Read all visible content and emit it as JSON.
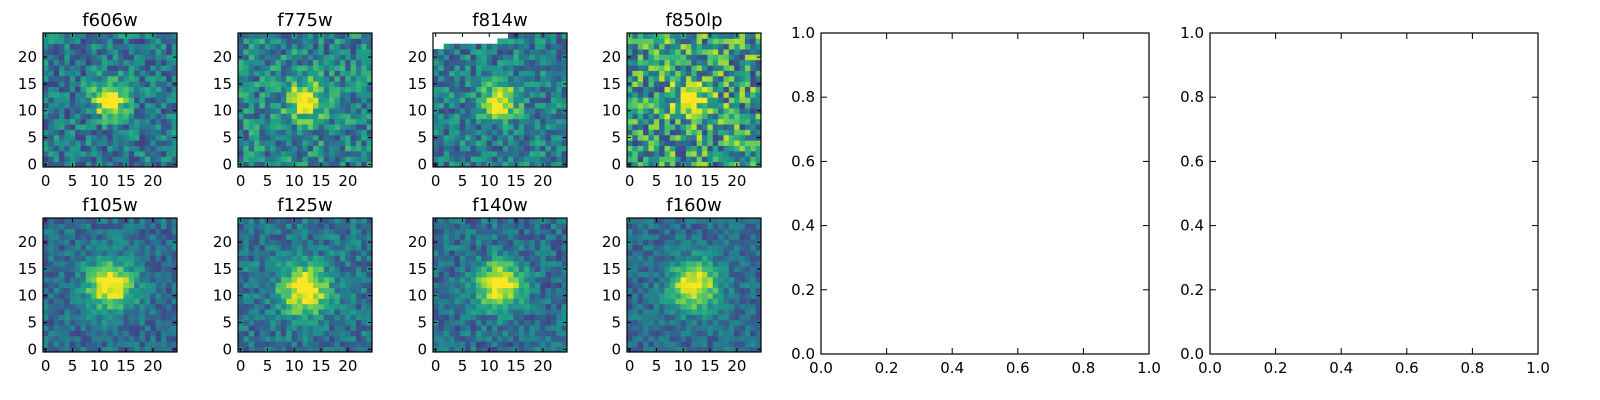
{
  "figure": {
    "background": "#ffffff"
  },
  "chart_data": [
    {
      "type": "heatmap",
      "title": "f606w",
      "xlabel": "",
      "ylabel": "",
      "x_ticks": [
        "0",
        "5",
        "10",
        "15",
        "20"
      ],
      "y_ticks": [
        "0",
        "5",
        "10",
        "15",
        "20"
      ],
      "xlim": [
        0,
        25
      ],
      "ylim": [
        0,
        25
      ],
      "grid_size": [
        25,
        25
      ],
      "colormap": "viridis",
      "peak": {
        "x": 12,
        "y": 12,
        "amplitude": 0.75,
        "sigma": 2.2
      },
      "background_level": 0.4,
      "noise": 0.22,
      "seed": 11,
      "masked_region": null
    },
    {
      "type": "heatmap",
      "title": "f775w",
      "xlabel": "",
      "ylabel": "",
      "x_ticks": [
        "0",
        "5",
        "10",
        "15",
        "20"
      ],
      "y_ticks": [
        "0",
        "5",
        "10",
        "15",
        "20"
      ],
      "xlim": [
        0,
        25
      ],
      "ylim": [
        0,
        25
      ],
      "grid_size": [
        25,
        25
      ],
      "colormap": "viridis",
      "peak": {
        "x": 12,
        "y": 12,
        "amplitude": 0.6,
        "sigma": 2.4
      },
      "background_level": 0.45,
      "noise": 0.24,
      "seed": 23,
      "masked_region": null
    },
    {
      "type": "heatmap",
      "title": "f814w",
      "xlabel": "",
      "ylabel": "",
      "x_ticks": [
        "0",
        "5",
        "10",
        "15",
        "20"
      ],
      "y_ticks": [
        "0",
        "5",
        "10",
        "15",
        "20"
      ],
      "xlim": [
        0,
        25
      ],
      "ylim": [
        0,
        25
      ],
      "grid_size": [
        25,
        25
      ],
      "colormap": "viridis",
      "peak": {
        "x": 12,
        "y": 12,
        "amplitude": 0.6,
        "sigma": 2.3
      },
      "background_level": 0.42,
      "noise": 0.22,
      "seed": 37,
      "masked_region": "top-left"
    },
    {
      "type": "heatmap",
      "title": "f850lp",
      "xlabel": "",
      "ylabel": "",
      "x_ticks": [
        "0",
        "5",
        "10",
        "15",
        "20"
      ],
      "y_ticks": [
        "0",
        "5",
        "10",
        "15",
        "20"
      ],
      "xlim": [
        0,
        25
      ],
      "ylim": [
        0,
        25
      ],
      "grid_size": [
        25,
        25
      ],
      "colormap": "viridis",
      "peak": {
        "x": 12,
        "y": 12,
        "amplitude": 0.45,
        "sigma": 2.6
      },
      "background_level": 0.55,
      "noise": 0.36,
      "seed": 41,
      "masked_region": null
    },
    {
      "type": "heatmap",
      "title": "f105w",
      "xlabel": "",
      "ylabel": "",
      "x_ticks": [
        "0",
        "5",
        "10",
        "15",
        "20"
      ],
      "y_ticks": [
        "0",
        "5",
        "10",
        "15",
        "20"
      ],
      "xlim": [
        0,
        25
      ],
      "ylim": [
        0,
        25
      ],
      "grid_size": [
        25,
        25
      ],
      "colormap": "viridis",
      "peak": {
        "x": 12,
        "y": 12,
        "amplitude": 0.7,
        "sigma": 3.2
      },
      "background_level": 0.35,
      "noise": 0.15,
      "seed": 53,
      "masked_region": null
    },
    {
      "type": "heatmap",
      "title": "f125w",
      "xlabel": "",
      "ylabel": "",
      "x_ticks": [
        "0",
        "5",
        "10",
        "15",
        "20"
      ],
      "y_ticks": [
        "0",
        "5",
        "10",
        "15",
        "20"
      ],
      "xlim": [
        0,
        25
      ],
      "ylim": [
        0,
        25
      ],
      "grid_size": [
        25,
        25
      ],
      "colormap": "viridis",
      "peak": {
        "x": 12,
        "y": 11,
        "amplitude": 0.7,
        "sigma": 3.2
      },
      "background_level": 0.38,
      "noise": 0.17,
      "seed": 67,
      "masked_region": null
    },
    {
      "type": "heatmap",
      "title": "f140w",
      "xlabel": "",
      "ylabel": "",
      "x_ticks": [
        "0",
        "5",
        "10",
        "15",
        "20"
      ],
      "y_ticks": [
        "0",
        "5",
        "10",
        "15",
        "20"
      ],
      "xlim": [
        0,
        25
      ],
      "ylim": [
        0,
        25
      ],
      "grid_size": [
        25,
        25
      ],
      "colormap": "viridis",
      "peak": {
        "x": 12,
        "y": 12,
        "amplitude": 0.7,
        "sigma": 3.0
      },
      "background_level": 0.36,
      "noise": 0.17,
      "seed": 79,
      "masked_region": null
    },
    {
      "type": "heatmap",
      "title": "f160w",
      "xlabel": "",
      "ylabel": "",
      "x_ticks": [
        "0",
        "5",
        "10",
        "15",
        "20"
      ],
      "y_ticks": [
        "0",
        "5",
        "10",
        "15",
        "20"
      ],
      "xlim": [
        0,
        25
      ],
      "ylim": [
        0,
        25
      ],
      "grid_size": [
        25,
        25
      ],
      "colormap": "viridis",
      "peak": {
        "x": 12,
        "y": 12,
        "amplitude": 0.7,
        "sigma": 3.1
      },
      "background_level": 0.35,
      "noise": 0.14,
      "seed": 97,
      "masked_region": null
    },
    {
      "type": "line",
      "title": "",
      "xlabel": "",
      "ylabel": "",
      "series": [],
      "x_ticks": [
        "0.0",
        "0.2",
        "0.4",
        "0.6",
        "0.8",
        "1.0"
      ],
      "y_ticks": [
        "0.0",
        "0.2",
        "0.4",
        "0.6",
        "0.8",
        "1.0"
      ],
      "xlim": [
        0,
        1
      ],
      "ylim": [
        0,
        1
      ]
    },
    {
      "type": "line",
      "title": "",
      "xlabel": "",
      "ylabel": "",
      "series": [],
      "x_ticks": [
        "0.0",
        "0.2",
        "0.4",
        "0.6",
        "0.8",
        "1.0"
      ],
      "y_ticks": [
        "0.0",
        "0.2",
        "0.4",
        "0.6",
        "0.8",
        "1.0"
      ],
      "xlim": [
        0,
        1
      ],
      "ylim": [
        0,
        1
      ]
    }
  ]
}
